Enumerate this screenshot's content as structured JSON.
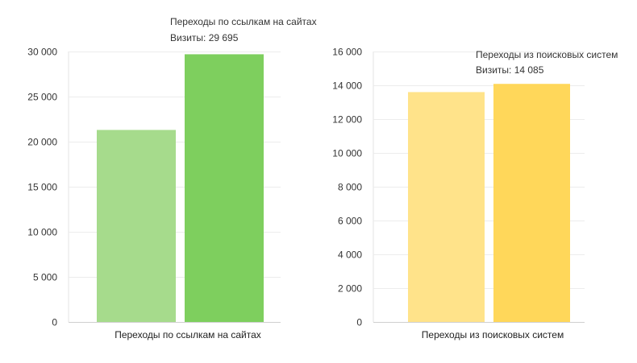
{
  "chart_data": [
    {
      "type": "bar",
      "categories": [
        "Переходы по ссылкам на сайтах"
      ],
      "series": [
        {
          "values": [
            21300
          ],
          "color": "#a6db8c"
        },
        {
          "values": [
            29695
          ],
          "color": "#7ecf5e"
        }
      ],
      "ylim": [
        0,
        30000
      ],
      "yticks": [
        0,
        5000,
        10000,
        15000,
        20000,
        25000,
        30000
      ],
      "ytick_labels": [
        "0",
        "5 000",
        "10 000",
        "15 000",
        "20 000",
        "25 000",
        "30 000"
      ],
      "grid": true,
      "tooltip": {
        "title": "Переходы по ссылкам на сайтах",
        "text": "Визиты: 29 695"
      }
    },
    {
      "type": "bar",
      "categories": [
        "Переходы из поисковых систем"
      ],
      "series": [
        {
          "values": [
            13600
          ],
          "color": "#ffe38a"
        },
        {
          "values": [
            14085
          ],
          "color": "#ffd75a"
        }
      ],
      "ylim": [
        0,
        16000
      ],
      "yticks": [
        0,
        2000,
        4000,
        6000,
        8000,
        10000,
        12000,
        14000,
        16000
      ],
      "ytick_labels": [
        "0",
        "2 000",
        "4 000",
        "6 000",
        "8 000",
        "10 000",
        "12 000",
        "14 000",
        "16 000"
      ],
      "grid": true,
      "tooltip": {
        "title": "Переходы из поисковых систем",
        "text": "Визиты: 14 085"
      }
    }
  ]
}
